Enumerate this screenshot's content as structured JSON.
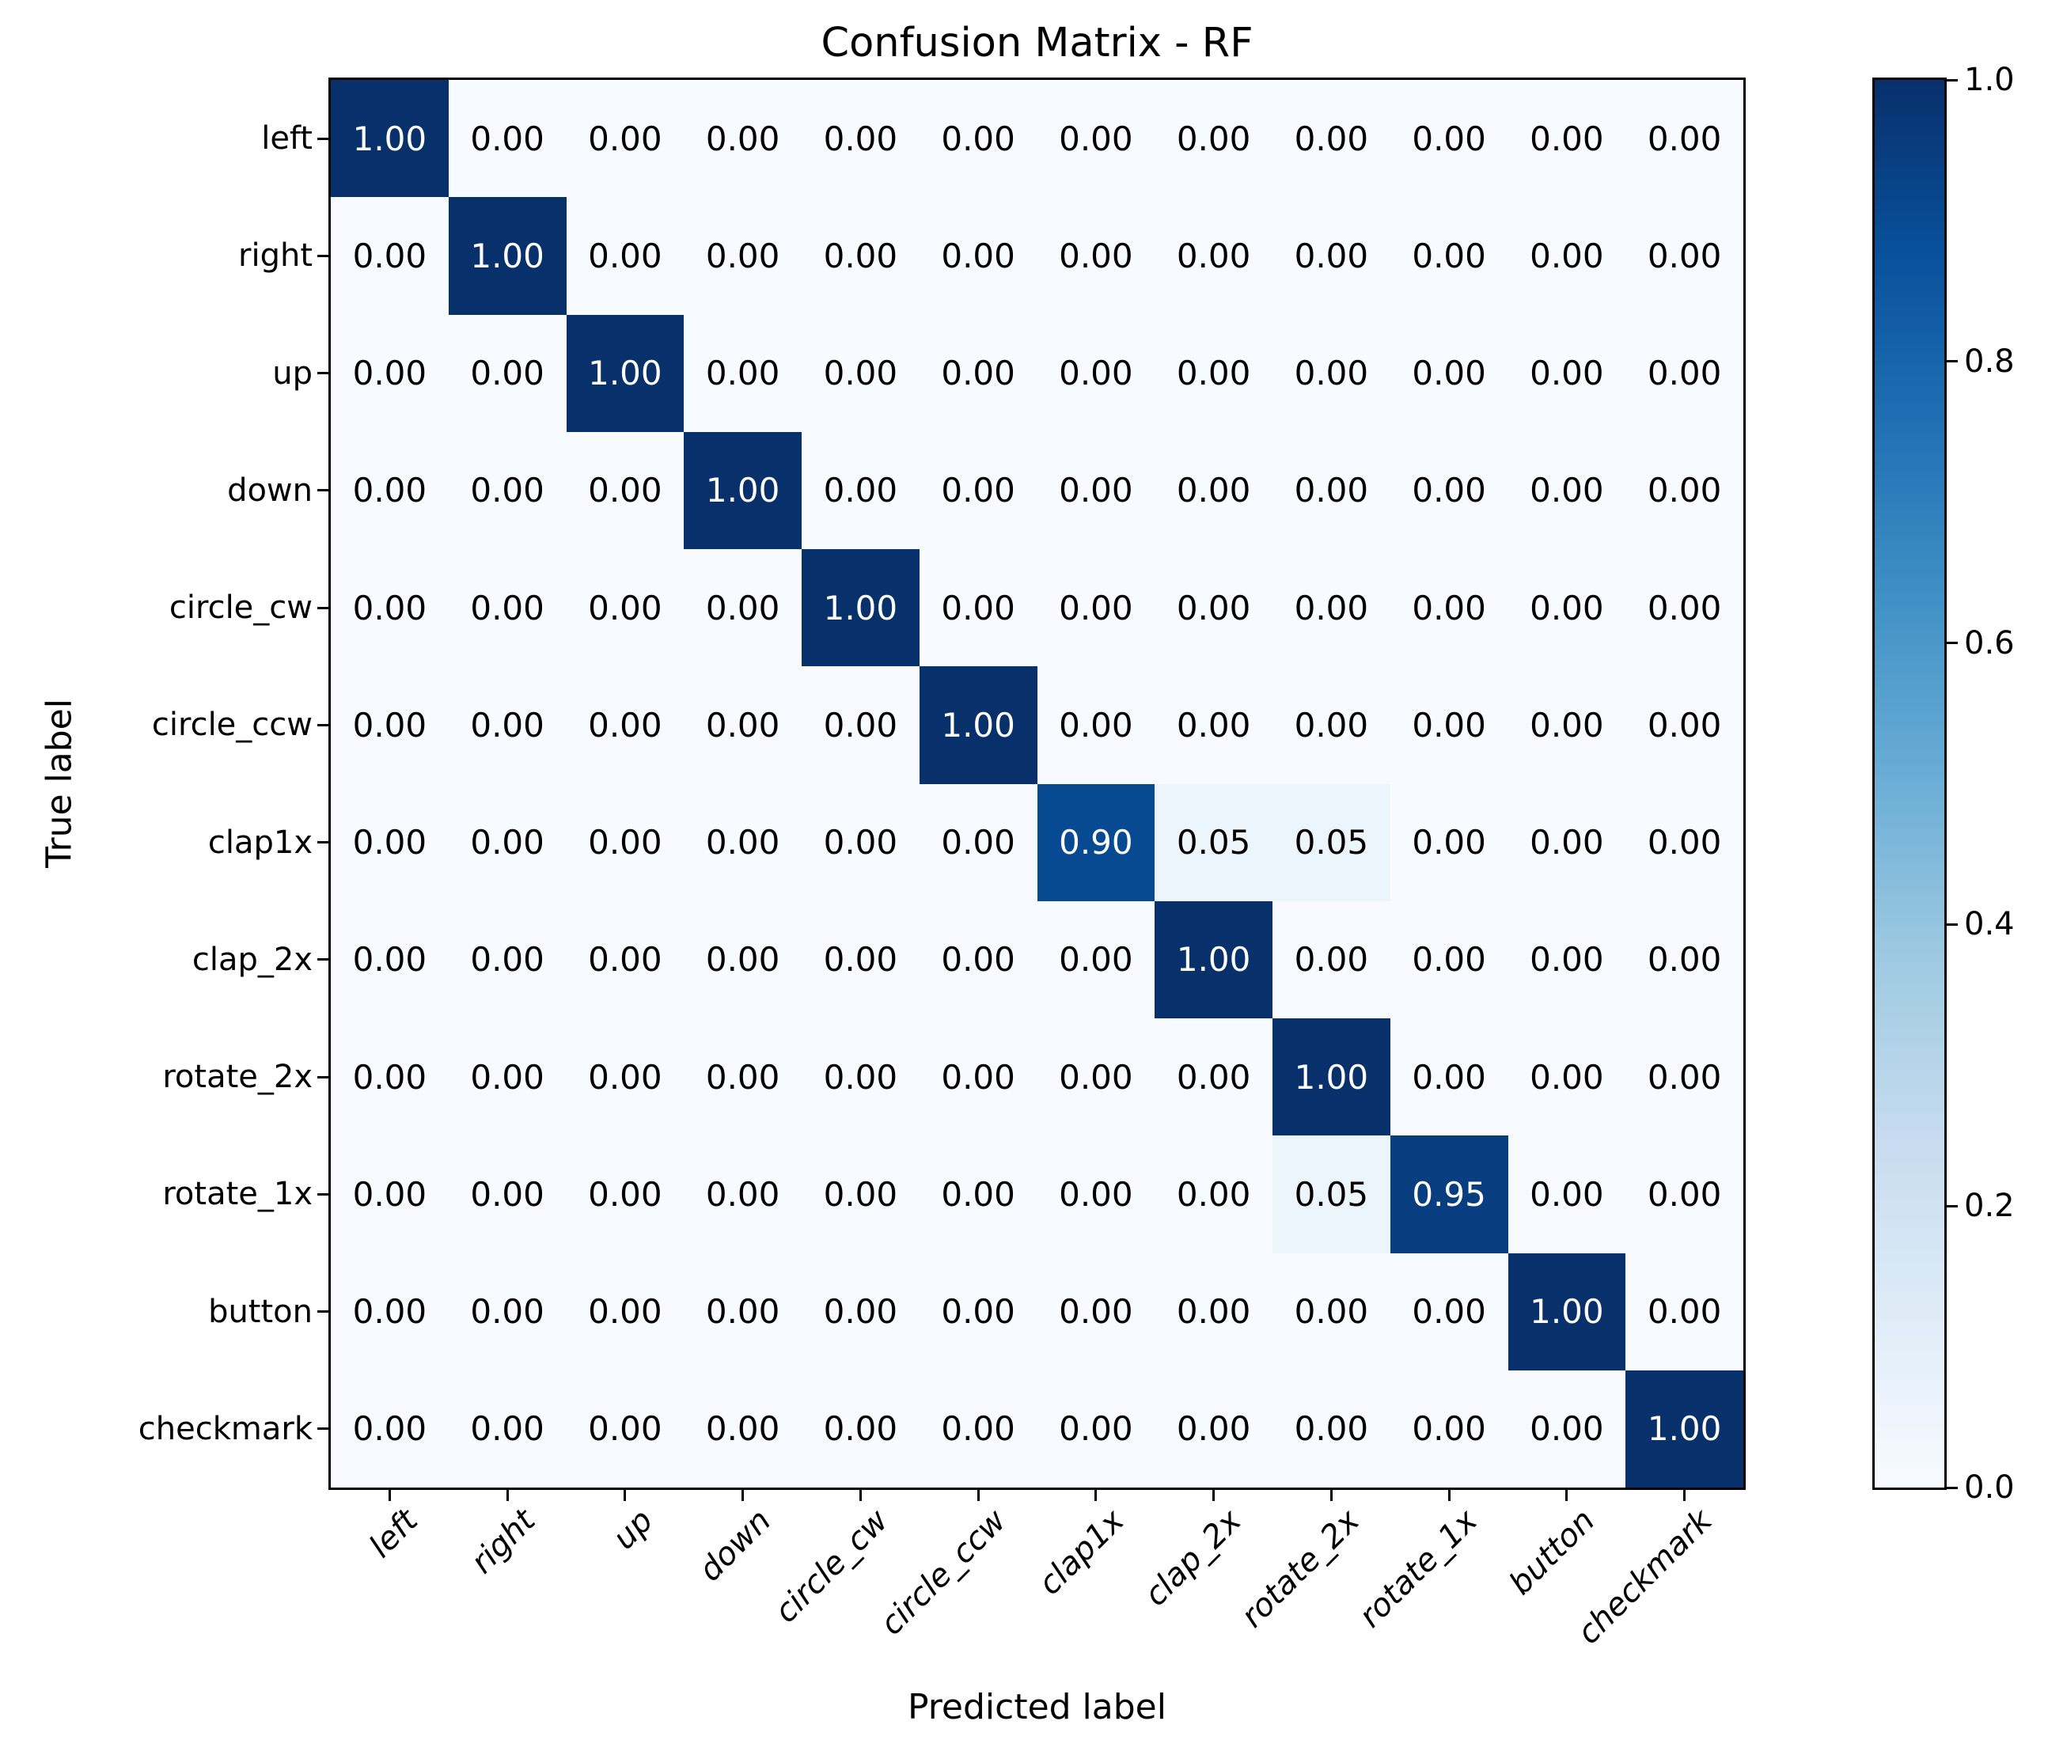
{
  "title": "Confusion Matrix - RF",
  "chart_data": {
    "type": "heatmap",
    "title": "Confusion Matrix - RF",
    "xlabel": "Predicted label",
    "ylabel": "True label",
    "categories": [
      "left",
      "right",
      "up",
      "down",
      "circle_cw",
      "circle_ccw",
      "clap1x",
      "clap_2x",
      "rotate_2x",
      "rotate_1x",
      "button",
      "checkmark"
    ],
    "matrix": [
      [
        1.0,
        0.0,
        0.0,
        0.0,
        0.0,
        0.0,
        0.0,
        0.0,
        0.0,
        0.0,
        0.0,
        0.0
      ],
      [
        0.0,
        1.0,
        0.0,
        0.0,
        0.0,
        0.0,
        0.0,
        0.0,
        0.0,
        0.0,
        0.0,
        0.0
      ],
      [
        0.0,
        0.0,
        1.0,
        0.0,
        0.0,
        0.0,
        0.0,
        0.0,
        0.0,
        0.0,
        0.0,
        0.0
      ],
      [
        0.0,
        0.0,
        0.0,
        1.0,
        0.0,
        0.0,
        0.0,
        0.0,
        0.0,
        0.0,
        0.0,
        0.0
      ],
      [
        0.0,
        0.0,
        0.0,
        0.0,
        1.0,
        0.0,
        0.0,
        0.0,
        0.0,
        0.0,
        0.0,
        0.0
      ],
      [
        0.0,
        0.0,
        0.0,
        0.0,
        0.0,
        1.0,
        0.0,
        0.0,
        0.0,
        0.0,
        0.0,
        0.0
      ],
      [
        0.0,
        0.0,
        0.0,
        0.0,
        0.0,
        0.0,
        0.9,
        0.05,
        0.05,
        0.0,
        0.0,
        0.0
      ],
      [
        0.0,
        0.0,
        0.0,
        0.0,
        0.0,
        0.0,
        0.0,
        1.0,
        0.0,
        0.0,
        0.0,
        0.0
      ],
      [
        0.0,
        0.0,
        0.0,
        0.0,
        0.0,
        0.0,
        0.0,
        0.0,
        1.0,
        0.0,
        0.0,
        0.0
      ],
      [
        0.0,
        0.0,
        0.0,
        0.0,
        0.0,
        0.0,
        0.0,
        0.0,
        0.05,
        0.95,
        0.0,
        0.0
      ],
      [
        0.0,
        0.0,
        0.0,
        0.0,
        0.0,
        0.0,
        0.0,
        0.0,
        0.0,
        0.0,
        1.0,
        0.0
      ],
      [
        0.0,
        0.0,
        0.0,
        0.0,
        0.0,
        0.0,
        0.0,
        0.0,
        0.0,
        0.0,
        0.0,
        1.0
      ]
    ],
    "value_decimals": 2,
    "vmin": 0.0,
    "vmax": 1.0,
    "grid": false,
    "legend_position": "right-colorbar",
    "colorbar_ticks": [
      1.0,
      0.8,
      0.6,
      0.4,
      0.2,
      0.0
    ],
    "colorbar_tick_decimals": 1,
    "text_color_threshold": 0.5,
    "cell_text_color_dark_bg": "#ffffff",
    "cell_text_color_light_bg": "#000000",
    "colormap": {
      "name": "Blues",
      "stops": [
        [
          0.0,
          "#f7fbff"
        ],
        [
          0.125,
          "#deebf7"
        ],
        [
          0.25,
          "#c6dbef"
        ],
        [
          0.375,
          "#9ecae1"
        ],
        [
          0.5,
          "#6baed6"
        ],
        [
          0.625,
          "#4292c6"
        ],
        [
          0.75,
          "#2171b5"
        ],
        [
          0.875,
          "#08519c"
        ],
        [
          1.0,
          "#08306b"
        ]
      ]
    }
  }
}
